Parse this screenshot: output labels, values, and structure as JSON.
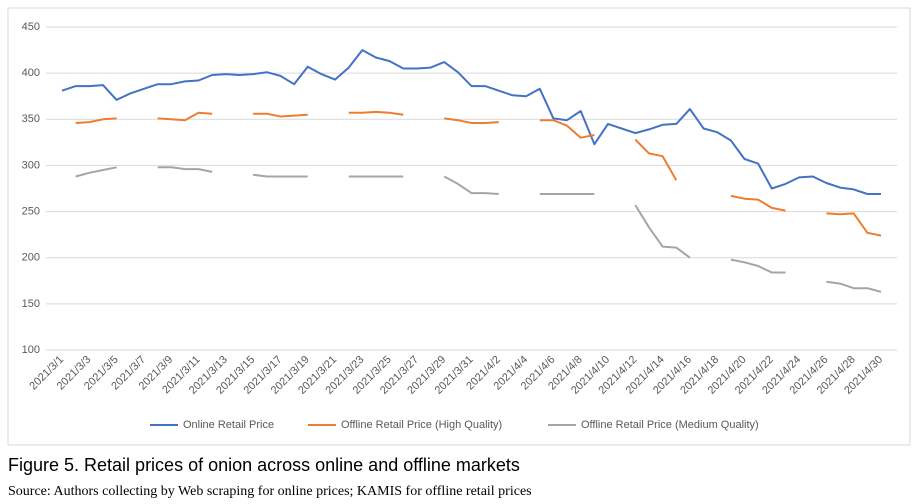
{
  "chart_data": {
    "type": "line",
    "categories": [
      "2021/3/1",
      null,
      "2021/3/3",
      null,
      "2021/3/5",
      null,
      "2021/3/7",
      null,
      "2021/3/9",
      null,
      "2021/3/11",
      null,
      "2021/3/13",
      null,
      "2021/3/15",
      null,
      "2021/3/17",
      null,
      "2021/3/19",
      null,
      "2021/3/21",
      null,
      "2021/3/23",
      null,
      "2021/3/25",
      null,
      "2021/3/27",
      null,
      "2021/3/29",
      null,
      "2021/3/31",
      null,
      "2021/4/2",
      null,
      "2021/4/4",
      null,
      "2021/4/6",
      null,
      "2021/4/8",
      null,
      "2021/4/10",
      null,
      "2021/4/12",
      null,
      "2021/4/14",
      null,
      "2021/4/16",
      null,
      "2021/4/18",
      null,
      "2021/4/20",
      null,
      "2021/4/22",
      null,
      "2021/4/24",
      null,
      "2021/4/26",
      null,
      "2021/4/28",
      null,
      "2021/4/30"
    ],
    "series": [
      {
        "name": "Online Retail Price",
        "color": "#4472c4",
        "values": [
          381,
          386,
          386,
          387,
          371,
          378,
          383,
          388,
          388,
          391,
          392,
          398,
          399,
          398,
          399,
          401,
          397,
          388,
          407,
          399,
          393,
          406,
          425,
          417,
          413,
          405,
          405,
          406,
          412,
          401,
          386,
          386,
          381,
          376,
          375,
          383,
          351,
          349,
          359,
          323,
          345,
          340,
          335,
          339,
          344,
          345,
          361,
          340,
          336,
          327,
          307,
          302,
          275,
          280,
          287,
          288,
          281,
          276,
          274,
          269,
          269
        ]
      },
      {
        "name": "Offline Retail Price (High Quality)",
        "color": "#ed7d31",
        "values": [
          null,
          346,
          347,
          350,
          351,
          null,
          null,
          351,
          350,
          349,
          357,
          356,
          null,
          null,
          356,
          356,
          353,
          354,
          355,
          null,
          null,
          357,
          357,
          358,
          357,
          355,
          null,
          null,
          351,
          349,
          346,
          346,
          347,
          null,
          null,
          349,
          349,
          343,
          330,
          333,
          null,
          null,
          328,
          313,
          310,
          284,
          null,
          null,
          null,
          267,
          264,
          263,
          254,
          251,
          null,
          null,
          248,
          247,
          248,
          227,
          224
        ]
      },
      {
        "name": "Offline Retail Price (Medium Quality)",
        "color": "#a5a5a5",
        "values": [
          null,
          288,
          292,
          295,
          298,
          null,
          null,
          298,
          298,
          296,
          296,
          293,
          null,
          null,
          290,
          288,
          288,
          288,
          288,
          null,
          null,
          288,
          288,
          288,
          288,
          288,
          null,
          null,
          288,
          280,
          270,
          270,
          269,
          null,
          null,
          269,
          269,
          269,
          269,
          269,
          null,
          null,
          257,
          233,
          212,
          211,
          200,
          null,
          null,
          198,
          195,
          191,
          184,
          184,
          null,
          null,
          174,
          172,
          167,
          167,
          163
        ]
      }
    ],
    "ylim": [
      100,
      450
    ],
    "yticks": [
      100,
      150,
      200,
      250,
      300,
      350,
      400,
      450
    ],
    "grid": true,
    "legend": "bottom"
  },
  "caption": "Figure 5. Retail prices of onion across online and offline markets",
  "source": "Source: Authors collecting by Web scraping for online prices; KAMIS for offline retail prices"
}
